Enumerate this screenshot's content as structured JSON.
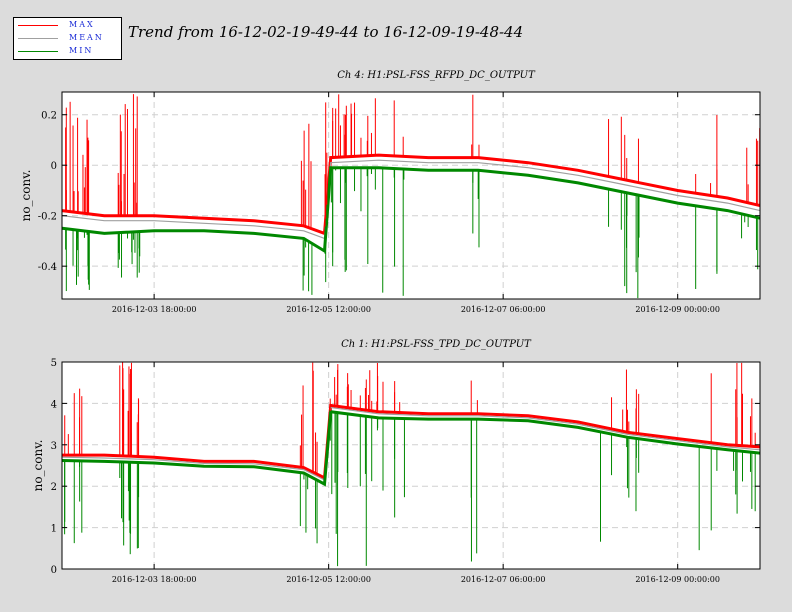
{
  "title": "Trend from 16-12-02-19-49-44 to 16-12-09-19-48-44",
  "legend": [
    {
      "label": "MAX",
      "color": "#ff0000"
    },
    {
      "label": "MEAN",
      "color": "#a0a0a0"
    },
    {
      "label": "MIN",
      "color": "#008800"
    }
  ],
  "chart_data": [
    {
      "type": "line",
      "title": "Ch 4: H1:PSL-FSS_RFPD_DC_OUTPUT",
      "ylabel": "no_conv.",
      "xlabel": "",
      "ylim": [
        -0.53,
        0.29
      ],
      "yticks": [
        -0.4,
        -0.2,
        0,
        0.2
      ],
      "ytick_labels": [
        "-0.4",
        "-0.2",
        "0",
        "0.2"
      ],
      "xlim": [
        "2016-12-02 19:49:44",
        "2016-12-09 19:48:44"
      ],
      "xticks": [
        "2016-12-03 18:00:00",
        "2016-12-05 12:00:00",
        "2016-12-07 06:00:00",
        "2016-12-09 00:00:00"
      ],
      "xtick_labels": [
        "2016-12-03 18:00:00",
        "2016-12-05 12:00:00",
        "2016-12-07 06:00:00",
        "2016-12-09 00:00:00"
      ],
      "grid": true,
      "series": [
        {
          "name": "MAX",
          "color": "#ff0000",
          "x": [
            "2016-12-02 19:49:44",
            "2016-12-03 06:00:00",
            "2016-12-03 18:00:00",
            "2016-12-04 06:00:00",
            "2016-12-04 18:00:00",
            "2016-12-05 06:00:00",
            "2016-12-05 11:00:00",
            "2016-12-05 12:30:00",
            "2016-12-06 00:00:00",
            "2016-12-06 12:00:00",
            "2016-12-07 00:00:00",
            "2016-12-07 12:00:00",
            "2016-12-08 00:00:00",
            "2016-12-08 12:00:00",
            "2016-12-09 00:00:00",
            "2016-12-09 12:00:00",
            "2016-12-09 19:48:44"
          ],
          "y": [
            -0.18,
            -0.2,
            -0.2,
            -0.21,
            -0.22,
            -0.24,
            -0.27,
            0.03,
            0.04,
            0.03,
            0.03,
            0.01,
            -0.02,
            -0.06,
            -0.1,
            -0.13,
            -0.16
          ]
        },
        {
          "name": "MEAN",
          "color": "#a0a0a0",
          "x": [
            "2016-12-02 19:49:44",
            "2016-12-03 06:00:00",
            "2016-12-03 18:00:00",
            "2016-12-04 06:00:00",
            "2016-12-04 18:00:00",
            "2016-12-05 06:00:00",
            "2016-12-05 11:00:00",
            "2016-12-05 12:30:00",
            "2016-12-06 00:00:00",
            "2016-12-06 12:00:00",
            "2016-12-07 00:00:00",
            "2016-12-07 12:00:00",
            "2016-12-08 00:00:00",
            "2016-12-08 12:00:00",
            "2016-12-09 00:00:00",
            "2016-12-09 12:00:00",
            "2016-12-09 19:48:44"
          ],
          "y": [
            -0.2,
            -0.22,
            -0.22,
            -0.23,
            -0.24,
            -0.26,
            -0.29,
            0.01,
            0.02,
            0.01,
            0.01,
            -0.01,
            -0.04,
            -0.08,
            -0.12,
            -0.15,
            -0.18
          ]
        },
        {
          "name": "MIN",
          "color": "#008800",
          "x": [
            "2016-12-02 19:49:44",
            "2016-12-03 06:00:00",
            "2016-12-03 18:00:00",
            "2016-12-04 06:00:00",
            "2016-12-04 18:00:00",
            "2016-12-05 06:00:00",
            "2016-12-05 11:00:00",
            "2016-12-05 12:30:00",
            "2016-12-06 00:00:00",
            "2016-12-06 12:00:00",
            "2016-12-07 00:00:00",
            "2016-12-07 12:00:00",
            "2016-12-08 00:00:00",
            "2016-12-08 12:00:00",
            "2016-12-09 00:00:00",
            "2016-12-09 12:00:00",
            "2016-12-09 19:48:44"
          ],
          "y": [
            -0.25,
            -0.27,
            -0.26,
            -0.26,
            -0.27,
            -0.29,
            -0.34,
            -0.01,
            -0.01,
            -0.02,
            -0.02,
            -0.04,
            -0.07,
            -0.11,
            -0.15,
            -0.18,
            -0.21
          ]
        }
      ]
    },
    {
      "type": "line",
      "title": "Ch 1: H1:PSL-FSS_TPD_DC_OUTPUT",
      "ylabel": "no_conv.",
      "xlabel": "",
      "ylim": [
        0,
        5
      ],
      "yticks": [
        0,
        1,
        2,
        3,
        4,
        5
      ],
      "ytick_labels": [
        "0",
        "1",
        "2",
        "3",
        "4",
        "5"
      ],
      "xlim": [
        "2016-12-02 19:49:44",
        "2016-12-09 19:48:44"
      ],
      "xticks": [
        "2016-12-03 18:00:00",
        "2016-12-05 12:00:00",
        "2016-12-07 06:00:00",
        "2016-12-09 00:00:00"
      ],
      "xtick_labels": [
        "2016-12-03 18:00:00",
        "2016-12-05 12:00:00",
        "2016-12-07 06:00:00",
        "2016-12-09 00:00:00"
      ],
      "grid": true,
      "series": [
        {
          "name": "MAX",
          "color": "#ff0000",
          "x": [
            "2016-12-02 19:49:44",
            "2016-12-03 06:00:00",
            "2016-12-03 18:00:00",
            "2016-12-04 06:00:00",
            "2016-12-04 18:00:00",
            "2016-12-05 06:00:00",
            "2016-12-05 11:00:00",
            "2016-12-05 12:30:00",
            "2016-12-06 00:00:00",
            "2016-12-06 12:00:00",
            "2016-12-07 00:00:00",
            "2016-12-07 12:00:00",
            "2016-12-08 00:00:00",
            "2016-12-08 12:00:00",
            "2016-12-09 00:00:00",
            "2016-12-09 12:00:00",
            "2016-12-09 19:48:44"
          ],
          "y": [
            2.75,
            2.75,
            2.7,
            2.6,
            2.6,
            2.45,
            2.2,
            3.95,
            3.8,
            3.75,
            3.75,
            3.7,
            3.55,
            3.3,
            3.15,
            3.0,
            2.95
          ]
        },
        {
          "name": "MEAN",
          "color": "#a0a0a0",
          "x": [
            "2016-12-02 19:49:44",
            "2016-12-03 06:00:00",
            "2016-12-03 18:00:00",
            "2016-12-04 06:00:00",
            "2016-12-04 18:00:00",
            "2016-12-05 06:00:00",
            "2016-12-05 11:00:00",
            "2016-12-05 12:30:00",
            "2016-12-06 00:00:00",
            "2016-12-06 12:00:00",
            "2016-12-07 00:00:00",
            "2016-12-07 12:00:00",
            "2016-12-08 00:00:00",
            "2016-12-08 12:00:00",
            "2016-12-09 00:00:00",
            "2016-12-09 12:00:00",
            "2016-12-09 19:48:44"
          ],
          "y": [
            2.7,
            2.68,
            2.64,
            2.55,
            2.54,
            2.4,
            2.15,
            3.9,
            3.75,
            3.7,
            3.7,
            3.65,
            3.5,
            3.25,
            3.1,
            2.95,
            2.88
          ]
        },
        {
          "name": "MIN",
          "color": "#008800",
          "x": [
            "2016-12-02 19:49:44",
            "2016-12-03 06:00:00",
            "2016-12-03 18:00:00",
            "2016-12-04 06:00:00",
            "2016-12-04 18:00:00",
            "2016-12-05 06:00:00",
            "2016-12-05 11:00:00",
            "2016-12-05 12:30:00",
            "2016-12-06 00:00:00",
            "2016-12-06 12:00:00",
            "2016-12-07 00:00:00",
            "2016-12-07 12:00:00",
            "2016-12-08 00:00:00",
            "2016-12-08 12:00:00",
            "2016-12-09 00:00:00",
            "2016-12-09 12:00:00",
            "2016-12-09 19:48:44"
          ],
          "y": [
            2.62,
            2.6,
            2.56,
            2.48,
            2.47,
            2.32,
            2.05,
            3.8,
            3.65,
            3.62,
            3.62,
            3.58,
            3.42,
            3.18,
            3.02,
            2.88,
            2.8
          ]
        }
      ]
    }
  ]
}
